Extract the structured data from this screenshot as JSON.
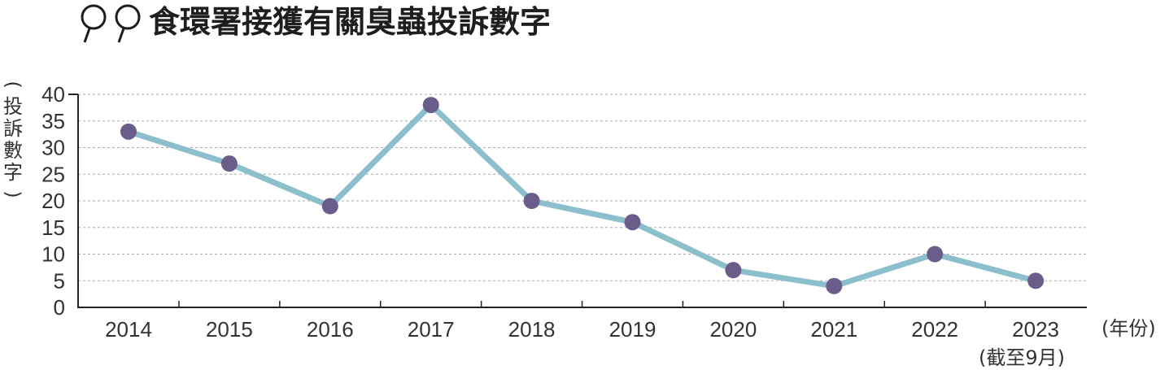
{
  "title": "食環署接獲有關臭蟲投訴數字",
  "colors": {
    "line": "#8bbfcc",
    "marker": "#6a5d8a",
    "axis": "#222222",
    "grid": "#aaaaaa",
    "title_icon": "#1e1e1e"
  },
  "chart_data": {
    "type": "line",
    "title": "食環署接獲有關臭蟲投訴數字",
    "xlabel": "(年份)",
    "ylabel": "(投訴數字)",
    "x_note": "(截至9月)",
    "categories": [
      "2014",
      "2015",
      "2016",
      "2017",
      "2018",
      "2019",
      "2020",
      "2021",
      "2022",
      "2023"
    ],
    "series": [
      {
        "values": [
          33,
          27,
          19,
          38,
          20,
          16,
          7,
          4,
          10,
          5
        ]
      }
    ],
    "ylim": [
      0,
      40
    ],
    "yticks": [
      0,
      5,
      10,
      15,
      20,
      25,
      30,
      35,
      40
    ],
    "grid": true
  }
}
